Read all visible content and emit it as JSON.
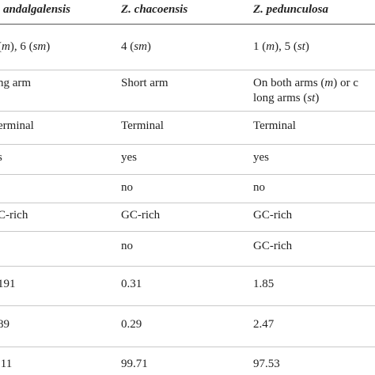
{
  "table": {
    "header": [
      "andalgalensis",
      "Z. chacoensis",
      "Z. pedunculosa"
    ],
    "rows": [
      [
        "(m), 6 (sm)",
        "4 (sm)",
        "1 (m), 5 (st)"
      ],
      [
        "ng arm",
        "Short arm",
        "On both arms (m) or c\nlong arms (st)"
      ],
      [
        "erminal",
        "Terminal",
        "Terminal"
      ],
      [
        "s",
        "yes",
        "yes"
      ],
      [
        "",
        "no",
        "no"
      ],
      [
        "C-rich",
        "GC-rich",
        "GC-rich"
      ],
      [
        "",
        "no",
        "GC-rich"
      ],
      [
        "191",
        "0.31",
        "1.85"
      ],
      [
        "89",
        "0.29",
        "2.47"
      ],
      [
        ".11",
        "99.71",
        "97.53"
      ]
    ]
  }
}
